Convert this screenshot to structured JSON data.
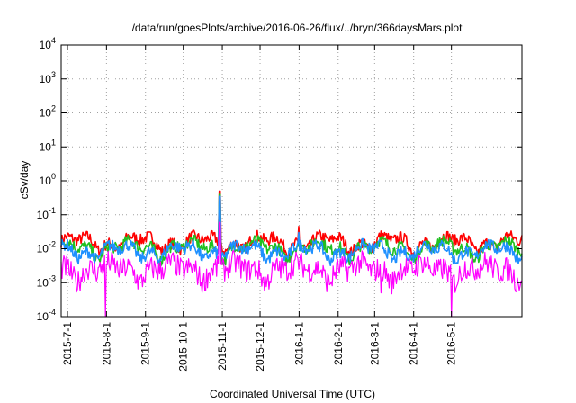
{
  "chart_data": {
    "type": "line",
    "title": "/data/run/goesPlots/archive/2016-06-26/flux/../bryn/366daysMars.plot",
    "xlabel": "Coordinated Universal Time (UTC)",
    "ylabel": "cSv/day",
    "yscale": "log",
    "ylim": [
      0.0001,
      10000
    ],
    "y_ticks": [
      {
        "base": "10",
        "exp": "-4"
      },
      {
        "base": "10",
        "exp": "-3"
      },
      {
        "base": "10",
        "exp": "-2"
      },
      {
        "base": "10",
        "exp": "-1"
      },
      {
        "base": "10",
        "exp": "0"
      },
      {
        "base": "10",
        "exp": "1"
      },
      {
        "base": "10",
        "exp": "2"
      },
      {
        "base": "10",
        "exp": "3"
      },
      {
        "base": "10",
        "exp": "4"
      }
    ],
    "xlim": [
      "2015-06-26",
      "2016-06-26"
    ],
    "x_ticks": [
      "2015-7-1",
      "2015-8-1",
      "2015-9-1",
      "2015-10-1",
      "2015-11-1",
      "2015-12-1",
      "2016-1-1",
      "2016-2-1",
      "2016-3-1",
      "2016-4-1",
      "2016-5-1"
    ],
    "grid": true,
    "legend": "none",
    "series": [
      {
        "color": "#ff0000",
        "baseline": 0.016,
        "events": [
          {
            "x": "2015-10-30",
            "y": 0.5
          },
          {
            "x": "2016-01-01",
            "y": 0.045
          }
        ]
      },
      {
        "color": "#20c020",
        "baseline": 0.011,
        "events": [
          {
            "x": "2015-10-30",
            "y": 0.4
          }
        ]
      },
      {
        "color": "#1e90ff",
        "baseline": 0.009,
        "events": [
          {
            "x": "2015-10-30",
            "y": 0.35
          },
          {
            "x": "2016-01-01",
            "y": 0.03
          }
        ]
      },
      {
        "color": "#ff00ff",
        "baseline": 0.0025,
        "events": [
          {
            "x": "2015-10-30",
            "y": 0.06
          },
          {
            "x": "2015-07-31",
            "y": 0.0001
          },
          {
            "x": "2016-03-06",
            "y": 0.0005
          },
          {
            "x": "2016-05-01",
            "y": 0.0001
          }
        ]
      }
    ]
  }
}
